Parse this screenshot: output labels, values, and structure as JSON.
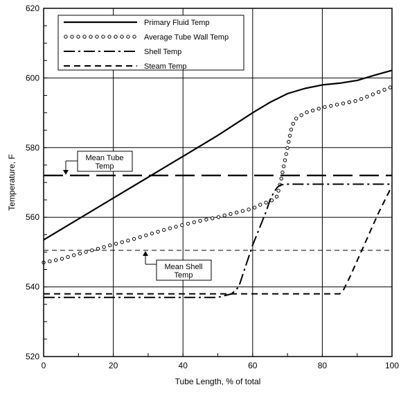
{
  "chart_data": {
    "type": "line",
    "xlabel": "Tube Length, % of total",
    "ylabel": "Temperature, F",
    "xlim": [
      0,
      100
    ],
    "ylim": [
      520,
      620
    ],
    "xticks": [
      "0",
      "20",
      "40",
      "60",
      "80",
      "100"
    ],
    "yticks": [
      "520",
      "540",
      "560",
      "580",
      "600",
      "620"
    ],
    "grid": true,
    "legend_position": "top-left",
    "series": [
      {
        "name": "Primary Fluid Temp",
        "style": "solid",
        "x": [
          0,
          10,
          20,
          30,
          40,
          50,
          60,
          65,
          70,
          75,
          80,
          85,
          90,
          95,
          100
        ],
        "y": [
          553.5,
          559.5,
          565.5,
          571.5,
          577.5,
          583.5,
          590,
          593,
          595.5,
          597,
          598,
          598.5,
          599.3,
          600.8,
          602.2
        ]
      },
      {
        "name": "Average Tube Wall Temp",
        "style": "dotted",
        "x": [
          0,
          5,
          10,
          15,
          20,
          25,
          30,
          35,
          40,
          45,
          50,
          55,
          60,
          63,
          65,
          67,
          68,
          69,
          70,
          71,
          72,
          75,
          80,
          85,
          90,
          95,
          100
        ],
        "y": [
          547,
          548,
          549.5,
          550.8,
          552.2,
          553.5,
          555,
          556.5,
          557.8,
          559,
          560,
          561.3,
          562.5,
          564,
          564.5,
          566,
          570,
          575,
          580,
          585,
          588,
          590,
          591.5,
          592.5,
          593.5,
          595.5,
          597.5
        ]
      },
      {
        "name": "Shell Temp",
        "style": "dash-dot",
        "x": [
          0,
          10,
          20,
          30,
          40,
          50,
          52,
          54,
          56,
          58,
          60,
          62,
          64,
          65,
          66,
          67,
          68,
          70,
          80,
          90,
          100
        ],
        "y": [
          537,
          537,
          537,
          537,
          537,
          537,
          537.5,
          538,
          540,
          546,
          552,
          557,
          562,
          565,
          567,
          568.5,
          569.3,
          569.5,
          569.5,
          569.5,
          569.5
        ]
      },
      {
        "name": "Steam Temp",
        "style": "dashed",
        "x": [
          0,
          10,
          20,
          30,
          40,
          50,
          60,
          70,
          80,
          85,
          86,
          88,
          90,
          92,
          94,
          96,
          98,
          100
        ],
        "y": [
          538,
          538,
          538,
          538,
          538,
          538,
          538,
          538,
          538,
          538,
          539,
          543,
          547.5,
          552,
          556.5,
          561,
          565,
          569
        ]
      }
    ],
    "reference_lines": [
      {
        "label": "Mean Tube Temp",
        "y": 572,
        "style": "long-dash"
      },
      {
        "label": "Mean Shell Temp",
        "y": 550.5,
        "style": "thin-dash"
      }
    ],
    "annotations": [
      {
        "text_lines": [
          "Mean Tube",
          "Temp"
        ],
        "points_to": "Mean Tube Temp"
      },
      {
        "text_lines": [
          "Mean Shell",
          "Temp"
        ],
        "points_to": "Mean Shell Temp"
      }
    ]
  }
}
